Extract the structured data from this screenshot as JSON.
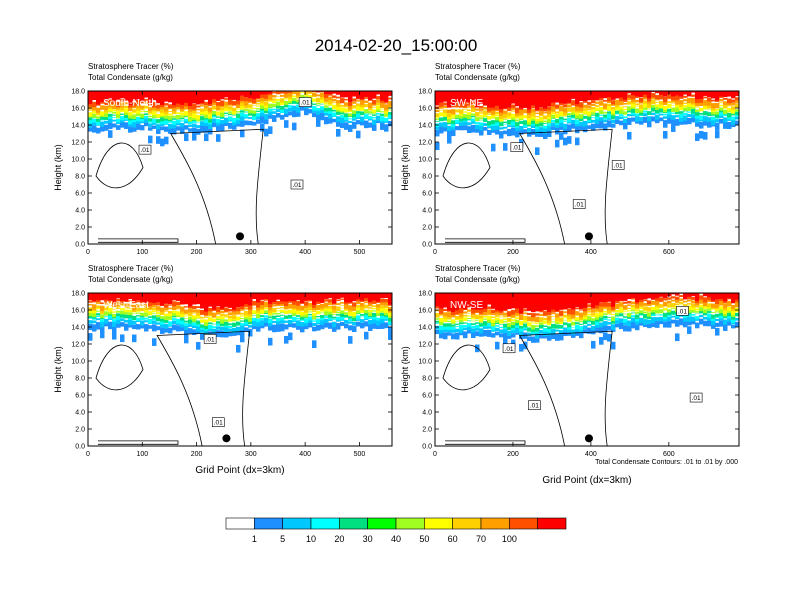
{
  "figure": {
    "title": "2014-02-20_15:00:00",
    "contour_info": "Total Condensate Contours: .01 to .01 by .000",
    "xlabel": "Grid Point (dx=3km)"
  },
  "chart_data": [
    {
      "type": "heatmap",
      "panel": "South-North",
      "header_line1": "Stratosphere Tracer   (%)",
      "header_line2": "Total Condensate   (g/kg)",
      "ylabel": "Height (km)",
      "xlabel": "",
      "xlim": [
        0,
        560
      ],
      "ylim": [
        0,
        18
      ],
      "xticks": [
        0,
        100,
        200,
        300,
        400,
        500
      ],
      "yticks": [
        "0.0",
        "2.0",
        "4.0",
        "6.0",
        "8.0",
        "10.0",
        "12.0",
        "14.0",
        "16.0",
        "18.0"
      ],
      "contour_labels": [
        {
          "text": ".01",
          "x": 105,
          "y": 11.1
        },
        {
          "text": ".01",
          "x": 385,
          "y": 7.0
        },
        {
          "text": ".01",
          "x": 400,
          "y": 16.7
        }
      ],
      "tracer_profile": [
        [
          0,
          13.6
        ],
        [
          80,
          13.9
        ],
        [
          140,
          13.6
        ],
        [
          200,
          13.4
        ],
        [
          240,
          14.0
        ],
        [
          300,
          14.2
        ],
        [
          350,
          15.0
        ],
        [
          390,
          15.8
        ],
        [
          420,
          15.2
        ],
        [
          470,
          14.0
        ],
        [
          520,
          14.2
        ],
        [
          560,
          14.0
        ]
      ],
      "marker": {
        "x": 280,
        "y": 0.9
      }
    },
    {
      "type": "heatmap",
      "panel": "SW-NE",
      "header_line1": "Stratosphere Tracer   (%)",
      "header_line2": "Total Condensate   (g/kg)",
      "ylabel": "Height (km)",
      "xlabel": "",
      "xlim": [
        0,
        780
      ],
      "ylim": [
        0,
        18
      ],
      "xticks": [
        0,
        200,
        400,
        600
      ],
      "yticks": [
        "0.0",
        "2.0",
        "4.0",
        "6.0",
        "8.0",
        "10.0",
        "12.0",
        "14.0",
        "16.0",
        "18.0"
      ],
      "contour_labels": [
        {
          "text": ".01",
          "x": 210,
          "y": 11.4
        },
        {
          "text": ".01",
          "x": 470,
          "y": 9.3
        },
        {
          "text": ".01",
          "x": 370,
          "y": 4.7
        }
      ],
      "tracer_profile": [
        [
          0,
          13.4
        ],
        [
          100,
          13.6
        ],
        [
          180,
          13.2
        ],
        [
          260,
          13.0
        ],
        [
          360,
          13.8
        ],
        [
          460,
          14.2
        ],
        [
          560,
          14.6
        ],
        [
          660,
          14.4
        ],
        [
          780,
          14.0
        ]
      ],
      "marker": {
        "x": 395,
        "y": 0.9
      }
    },
    {
      "type": "heatmap",
      "panel": "West-East",
      "header_line1": "Stratosphere Tracer   (%)",
      "header_line2": "Total Condensate   (g/kg)",
      "ylabel": "Height (km)",
      "xlabel": "",
      "xlim": [
        0,
        560
      ],
      "ylim": [
        0,
        18
      ],
      "xticks": [
        0,
        100,
        200,
        300,
        400,
        500
      ],
      "yticks": [
        "0.0",
        "2.0",
        "4.0",
        "6.0",
        "8.0",
        "10.0",
        "12.0",
        "14.0",
        "16.0",
        "18.0"
      ],
      "contour_labels": [
        {
          "text": ".01",
          "x": 225,
          "y": 12.6
        },
        {
          "text": ".01",
          "x": 240,
          "y": 2.8
        }
      ],
      "tracer_profile": [
        [
          0,
          14.0
        ],
        [
          80,
          14.2
        ],
        [
          160,
          13.8
        ],
        [
          220,
          13.0
        ],
        [
          260,
          13.4
        ],
        [
          330,
          14.2
        ],
        [
          420,
          14.0
        ],
        [
          500,
          14.2
        ],
        [
          560,
          14.0
        ]
      ],
      "marker": {
        "x": 255,
        "y": 0.9
      }
    },
    {
      "type": "heatmap",
      "panel": "NW-SE",
      "header_line1": "Stratosphere Tracer   (%)",
      "header_line2": "Total Condensate   (g/kg)",
      "ylabel": "Height (km)",
      "xlabel": "",
      "xlim": [
        0,
        780
      ],
      "ylim": [
        0,
        18
      ],
      "xticks": [
        0,
        200,
        400,
        600
      ],
      "yticks": [
        "0.0",
        "2.0",
        "4.0",
        "6.0",
        "8.0",
        "10.0",
        "12.0",
        "14.0",
        "16.0",
        "18.0"
      ],
      "contour_labels": [
        {
          "text": ".01",
          "x": 190,
          "y": 11.5
        },
        {
          "text": ".01",
          "x": 255,
          "y": 4.8
        },
        {
          "text": ".01",
          "x": 635,
          "y": 15.9
        },
        {
          "text": ".01",
          "x": 670,
          "y": 5.7
        }
      ],
      "tracer_profile": [
        [
          0,
          13.2
        ],
        [
          100,
          13.4
        ],
        [
          200,
          13.0
        ],
        [
          300,
          12.8
        ],
        [
          400,
          13.6
        ],
        [
          500,
          14.2
        ],
        [
          600,
          14.6
        ],
        [
          700,
          14.4
        ],
        [
          780,
          14.2
        ]
      ],
      "marker": {
        "x": 395,
        "y": 0.9
      }
    }
  ],
  "colorbar": {
    "labels": [
      "1",
      "5",
      "10",
      "20",
      "30",
      "40",
      "50",
      "60",
      "70",
      "100"
    ],
    "colors": [
      "#ffffff",
      "#1e90ff",
      "#00c8ff",
      "#00ffff",
      "#00e080",
      "#00ff00",
      "#a0ff20",
      "#ffff00",
      "#ffd000",
      "#ffa000",
      "#ff5000",
      "#ff0000"
    ]
  }
}
